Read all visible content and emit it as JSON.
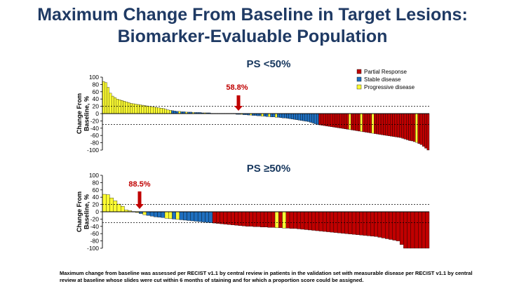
{
  "title_line1": "Maximum Change From Baseline in Target Lesions:",
  "title_line2": "Biomarker-Evaluable Population",
  "footnote_line1": "Maximum change from baseline was assessed per RECIST v1.1 by central review in patients in the validation set with measurable disease per RECIST v1.1 by central",
  "footnote_line2": "review at baseline whose slides were cut within 6 months of staining and for which a proportion score could be assigned.",
  "colors": {
    "partial": "#c00000",
    "stable": "#1f6fbf",
    "progressive": "#ffff33",
    "annotation": "#c00000",
    "title": "#1f3a64"
  },
  "chart_data": [
    {
      "type": "bar",
      "title": "PS <50%",
      "ylabel": "Change From Baseline, %",
      "ylim": [
        -100,
        100
      ],
      "yticks": [
        100,
        80,
        60,
        40,
        20,
        0,
        -20,
        -40,
        -60,
        -80,
        -100
      ],
      "reference_lines": [
        20,
        -30
      ],
      "legend": [
        "Partial Response",
        "Stable disease",
        "Progressive disease"
      ],
      "legend_position": "top-right",
      "annotation": "58.8%",
      "bars": [
        {
          "v": 88,
          "s": "P"
        },
        {
          "v": 85,
          "s": "P"
        },
        {
          "v": 72,
          "s": "P"
        },
        {
          "v": 56,
          "s": "P"
        },
        {
          "v": 48,
          "s": "P"
        },
        {
          "v": 44,
          "s": "P"
        },
        {
          "v": 40,
          "s": "P"
        },
        {
          "v": 38,
          "s": "P"
        },
        {
          "v": 36,
          "s": "P"
        },
        {
          "v": 34,
          "s": "P"
        },
        {
          "v": 32,
          "s": "P"
        },
        {
          "v": 30,
          "s": "P"
        },
        {
          "v": 28,
          "s": "P"
        },
        {
          "v": 27,
          "s": "P"
        },
        {
          "v": 26,
          "s": "P"
        },
        {
          "v": 25,
          "s": "P"
        },
        {
          "v": 24,
          "s": "P"
        },
        {
          "v": 23,
          "s": "P"
        },
        {
          "v": 22,
          "s": "P"
        },
        {
          "v": 21,
          "s": "P"
        },
        {
          "v": 20,
          "s": "P"
        },
        {
          "v": 19,
          "s": "P"
        },
        {
          "v": 18,
          "s": "P"
        },
        {
          "v": 17,
          "s": "P"
        },
        {
          "v": 16,
          "s": "P"
        },
        {
          "v": 15,
          "s": "P"
        },
        {
          "v": 14,
          "s": "P"
        },
        {
          "v": 12,
          "s": "P"
        },
        {
          "v": 10,
          "s": "P"
        },
        {
          "v": 9,
          "s": "P"
        },
        {
          "v": 8,
          "s": "S"
        },
        {
          "v": 7,
          "s": "S"
        },
        {
          "v": 6,
          "s": "S"
        },
        {
          "v": 6,
          "s": "P"
        },
        {
          "v": 5,
          "s": "S"
        },
        {
          "v": 5,
          "s": "S"
        },
        {
          "v": 4,
          "s": "P"
        },
        {
          "v": 4,
          "s": "S"
        },
        {
          "v": 4,
          "s": "S"
        },
        {
          "v": 3,
          "s": "P"
        },
        {
          "v": 3,
          "s": "S"
        },
        {
          "v": 3,
          "s": "S"
        },
        {
          "v": 3,
          "s": "S"
        },
        {
          "v": 2,
          "s": "S"
        },
        {
          "v": 2,
          "s": "P"
        },
        {
          "v": 2,
          "s": "S"
        },
        {
          "v": 2,
          "s": "S"
        },
        {
          "v": 1,
          "s": "S"
        },
        {
          "v": 1,
          "s": "S"
        },
        {
          "v": 1,
          "s": "P"
        },
        {
          "v": 1,
          "s": "S"
        },
        {
          "v": 1,
          "s": "S"
        },
        {
          "v": 0,
          "s": "S"
        },
        {
          "v": 0,
          "s": "S"
        },
        {
          "v": 0,
          "s": "P"
        },
        {
          "v": -1,
          "s": "S"
        },
        {
          "v": -1,
          "s": "S"
        },
        {
          "v": -1,
          "s": "S"
        },
        {
          "v": -2,
          "s": "S"
        },
        {
          "v": -2,
          "s": "S"
        },
        {
          "v": -2,
          "s": "P"
        },
        {
          "v": -3,
          "s": "S"
        },
        {
          "v": -3,
          "s": "S"
        },
        {
          "v": -4,
          "s": "S"
        },
        {
          "v": -4,
          "s": "P"
        },
        {
          "v": -5,
          "s": "S"
        },
        {
          "v": -5,
          "s": "S"
        },
        {
          "v": -6,
          "s": "S"
        },
        {
          "v": -6,
          "s": "S"
        },
        {
          "v": -7,
          "s": "P"
        },
        {
          "v": -7,
          "s": "S"
        },
        {
          "v": -8,
          "s": "S"
        },
        {
          "v": -8,
          "s": "P"
        },
        {
          "v": -9,
          "s": "S"
        },
        {
          "v": -9,
          "s": "S"
        },
        {
          "v": -10,
          "s": "P"
        },
        {
          "v": -10,
          "s": "S"
        },
        {
          "v": -11,
          "s": "S"
        },
        {
          "v": -12,
          "s": "S"
        },
        {
          "v": -12,
          "s": "S"
        },
        {
          "v": -13,
          "s": "S"
        },
        {
          "v": -14,
          "s": "S"
        },
        {
          "v": -15,
          "s": "S"
        },
        {
          "v": -16,
          "s": "S"
        },
        {
          "v": -17,
          "s": "S"
        },
        {
          "v": -18,
          "s": "S"
        },
        {
          "v": -19,
          "s": "S"
        },
        {
          "v": -20,
          "s": "S"
        },
        {
          "v": -21,
          "s": "S"
        },
        {
          "v": -22,
          "s": "S"
        },
        {
          "v": -24,
          "s": "S"
        },
        {
          "v": -26,
          "s": "S"
        },
        {
          "v": -28,
          "s": "S"
        },
        {
          "v": -30,
          "s": "S"
        },
        {
          "v": -31,
          "s": "R"
        },
        {
          "v": -32,
          "s": "R"
        },
        {
          "v": -33,
          "s": "R"
        },
        {
          "v": -34,
          "s": "R"
        },
        {
          "v": -35,
          "s": "R"
        },
        {
          "v": -36,
          "s": "R"
        },
        {
          "v": -37,
          "s": "R"
        },
        {
          "v": -38,
          "s": "R"
        },
        {
          "v": -39,
          "s": "R"
        },
        {
          "v": -40,
          "s": "R"
        },
        {
          "v": -41,
          "s": "R"
        },
        {
          "v": -42,
          "s": "R"
        },
        {
          "v": -43,
          "s": "R"
        },
        {
          "v": -44,
          "s": "P"
        },
        {
          "v": -45,
          "s": "R"
        },
        {
          "v": -46,
          "s": "R"
        },
        {
          "v": -47,
          "s": "R"
        },
        {
          "v": -48,
          "s": "R"
        },
        {
          "v": -49,
          "s": "P"
        },
        {
          "v": -50,
          "s": "R"
        },
        {
          "v": -51,
          "s": "R"
        },
        {
          "v": -52,
          "s": "R"
        },
        {
          "v": -53,
          "s": "R"
        },
        {
          "v": -54,
          "s": "P"
        },
        {
          "v": -55,
          "s": "R"
        },
        {
          "v": -56,
          "s": "R"
        },
        {
          "v": -57,
          "s": "R"
        },
        {
          "v": -58,
          "s": "R"
        },
        {
          "v": -59,
          "s": "R"
        },
        {
          "v": -60,
          "s": "R"
        },
        {
          "v": -61,
          "s": "R"
        },
        {
          "v": -62,
          "s": "R"
        },
        {
          "v": -63,
          "s": "R"
        },
        {
          "v": -64,
          "s": "R"
        },
        {
          "v": -65,
          "s": "R"
        },
        {
          "v": -66,
          "s": "R"
        },
        {
          "v": -68,
          "s": "R"
        },
        {
          "v": -70,
          "s": "R"
        },
        {
          "v": -72,
          "s": "R"
        },
        {
          "v": -74,
          "s": "R"
        },
        {
          "v": -75,
          "s": "R"
        },
        {
          "v": -77,
          "s": "R"
        },
        {
          "v": -79,
          "s": "P"
        },
        {
          "v": -82,
          "s": "R"
        },
        {
          "v": -85,
          "s": "R"
        },
        {
          "v": -90,
          "s": "R"
        },
        {
          "v": -95,
          "s": "R"
        },
        {
          "v": -100,
          "s": "R"
        }
      ]
    },
    {
      "type": "bar",
      "title": "PS ≥50%",
      "ylabel": "Change From Baseline, %",
      "ylim": [
        -100,
        100
      ],
      "yticks": [
        100,
        80,
        60,
        40,
        20,
        0,
        -20,
        -40,
        -60,
        -80,
        -100
      ],
      "reference_lines": [
        20,
        -30
      ],
      "annotation": "88.5%",
      "bars": [
        {
          "v": 48,
          "s": "P"
        },
        {
          "v": 47,
          "s": "P"
        },
        {
          "v": 38,
          "s": "P"
        },
        {
          "v": 30,
          "s": "P"
        },
        {
          "v": 21,
          "s": "P"
        },
        {
          "v": 15,
          "s": "P"
        },
        {
          "v": 5,
          "s": "P"
        },
        {
          "v": 3,
          "s": "P"
        },
        {
          "v": 0,
          "s": "P"
        },
        {
          "v": -2,
          "s": "P"
        },
        {
          "v": -5,
          "s": "S"
        },
        {
          "v": -8,
          "s": "P"
        },
        {
          "v": -10,
          "s": "S"
        },
        {
          "v": -12,
          "s": "S"
        },
        {
          "v": -14,
          "s": "S"
        },
        {
          "v": -15,
          "s": "S"
        },
        {
          "v": -16,
          "s": "S"
        },
        {
          "v": -18,
          "s": "P"
        },
        {
          "v": -19,
          "s": "P"
        },
        {
          "v": -20,
          "s": "S"
        },
        {
          "v": -21,
          "s": "P"
        },
        {
          "v": -22,
          "s": "S"
        },
        {
          "v": -23,
          "s": "S"
        },
        {
          "v": -24,
          "s": "S"
        },
        {
          "v": -25,
          "s": "S"
        },
        {
          "v": -26,
          "s": "S"
        },
        {
          "v": -27,
          "s": "S"
        },
        {
          "v": -28,
          "s": "S"
        },
        {
          "v": -29,
          "s": "S"
        },
        {
          "v": -30,
          "s": "S"
        },
        {
          "v": -31,
          "s": "R"
        },
        {
          "v": -32,
          "s": "R"
        },
        {
          "v": -33,
          "s": "R"
        },
        {
          "v": -34,
          "s": "R"
        },
        {
          "v": -35,
          "s": "R"
        },
        {
          "v": -36,
          "s": "R"
        },
        {
          "v": -37,
          "s": "R"
        },
        {
          "v": -38,
          "s": "R"
        },
        {
          "v": -39,
          "s": "R"
        },
        {
          "v": -40,
          "s": "R"
        },
        {
          "v": -40,
          "s": "R"
        },
        {
          "v": -41,
          "s": "R"
        },
        {
          "v": -41,
          "s": "R"
        },
        {
          "v": -42,
          "s": "R"
        },
        {
          "v": -42,
          "s": "R"
        },
        {
          "v": -43,
          "s": "R"
        },
        {
          "v": -43,
          "s": "R"
        },
        {
          "v": -44,
          "s": "P"
        },
        {
          "v": -44,
          "s": "R"
        },
        {
          "v": -45,
          "s": "P"
        },
        {
          "v": -45,
          "s": "R"
        },
        {
          "v": -46,
          "s": "R"
        },
        {
          "v": -46,
          "s": "R"
        },
        {
          "v": -47,
          "s": "R"
        },
        {
          "v": -48,
          "s": "R"
        },
        {
          "v": -49,
          "s": "R"
        },
        {
          "v": -50,
          "s": "R"
        },
        {
          "v": -51,
          "s": "R"
        },
        {
          "v": -52,
          "s": "R"
        },
        {
          "v": -53,
          "s": "R"
        },
        {
          "v": -54,
          "s": "R"
        },
        {
          "v": -55,
          "s": "R"
        },
        {
          "v": -56,
          "s": "R"
        },
        {
          "v": -57,
          "s": "R"
        },
        {
          "v": -58,
          "s": "R"
        },
        {
          "v": -59,
          "s": "R"
        },
        {
          "v": -60,
          "s": "R"
        },
        {
          "v": -61,
          "s": "R"
        },
        {
          "v": -62,
          "s": "R"
        },
        {
          "v": -63,
          "s": "R"
        },
        {
          "v": -64,
          "s": "R"
        },
        {
          "v": -65,
          "s": "R"
        },
        {
          "v": -66,
          "s": "R"
        },
        {
          "v": -67,
          "s": "R"
        },
        {
          "v": -68,
          "s": "R"
        },
        {
          "v": -70,
          "s": "R"
        },
        {
          "v": -72,
          "s": "R"
        },
        {
          "v": -74,
          "s": "R"
        },
        {
          "v": -76,
          "s": "R"
        },
        {
          "v": -78,
          "s": "R"
        },
        {
          "v": -80,
          "s": "R"
        },
        {
          "v": -90,
          "s": "R"
        },
        {
          "v": -100,
          "s": "R"
        },
        {
          "v": -100,
          "s": "R"
        },
        {
          "v": -100,
          "s": "R"
        },
        {
          "v": -100,
          "s": "R"
        },
        {
          "v": -100,
          "s": "R"
        },
        {
          "v": -100,
          "s": "R"
        },
        {
          "v": -100,
          "s": "R"
        }
      ]
    }
  ]
}
